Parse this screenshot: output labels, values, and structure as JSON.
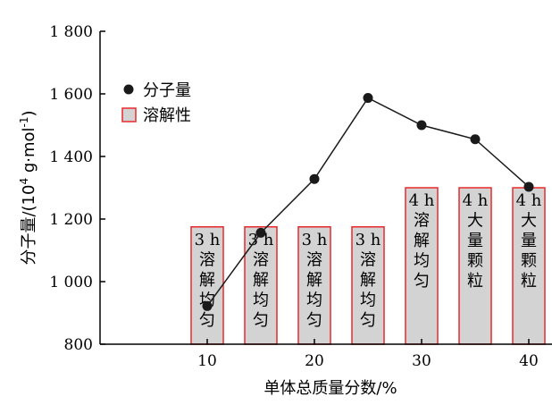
{
  "chart_data": {
    "type": "bar+line",
    "xlabel": "单体总质量分数/%",
    "ylabel_main": "分子量/(10",
    "ylabel_sup": "4",
    "ylabel_tail": " g·mol",
    "ylabel_sup2": "-1",
    "ylabel_close": ")",
    "xlim": [
      0,
      43
    ],
    "ylim": [
      800,
      1800
    ],
    "xticks": [
      10,
      20,
      30,
      40
    ],
    "xtick_labels": [
      "10",
      "20",
      "30",
      "40"
    ],
    "yticks": [
      800,
      1000,
      1200,
      1400,
      1600,
      1800
    ],
    "ytick_labels": [
      "800",
      "1 000",
      "1 200",
      "1 400",
      "1 600",
      "1 800"
    ],
    "legend": {
      "placement": "top-left",
      "items": [
        {
          "label": "分子量",
          "marker": "circle"
        },
        {
          "label": "溶解性",
          "marker": "square"
        }
      ]
    },
    "line_series": {
      "name": "分子量",
      "x": [
        10,
        15,
        20,
        25,
        30,
        35,
        40
      ],
      "y": [
        922,
        1156,
        1328,
        1587,
        1500,
        1455,
        1303
      ]
    },
    "bar_series": {
      "name": "溶解性",
      "x": [
        10,
        15,
        20,
        25,
        30,
        35,
        40
      ],
      "heights": [
        1175,
        1175,
        1175,
        1175,
        1300,
        1300,
        1300
      ],
      "bar_width": 3,
      "labels": [
        [
          "3 h",
          "溶",
          "解",
          "均",
          "匀"
        ],
        [
          "3 h",
          "溶",
          "解",
          "均",
          "匀"
        ],
        [
          "3 h",
          "溶",
          "解",
          "均",
          "匀"
        ],
        [
          "3 h",
          "溶",
          "解",
          "均",
          "匀"
        ],
        [
          "4 h",
          "溶",
          "解",
          "均",
          "匀"
        ],
        [
          "4 h",
          "大",
          "量",
          "颗",
          "粒"
        ],
        [
          "4 h",
          "大",
          "量",
          "颗",
          "粒"
        ]
      ]
    },
    "colors": {
      "bar_fill": "#d3d3d3",
      "bar_stroke": "#e8292c",
      "line": "#1a1a1a",
      "marker": "#1a1a1a",
      "axis": "#000000"
    }
  }
}
